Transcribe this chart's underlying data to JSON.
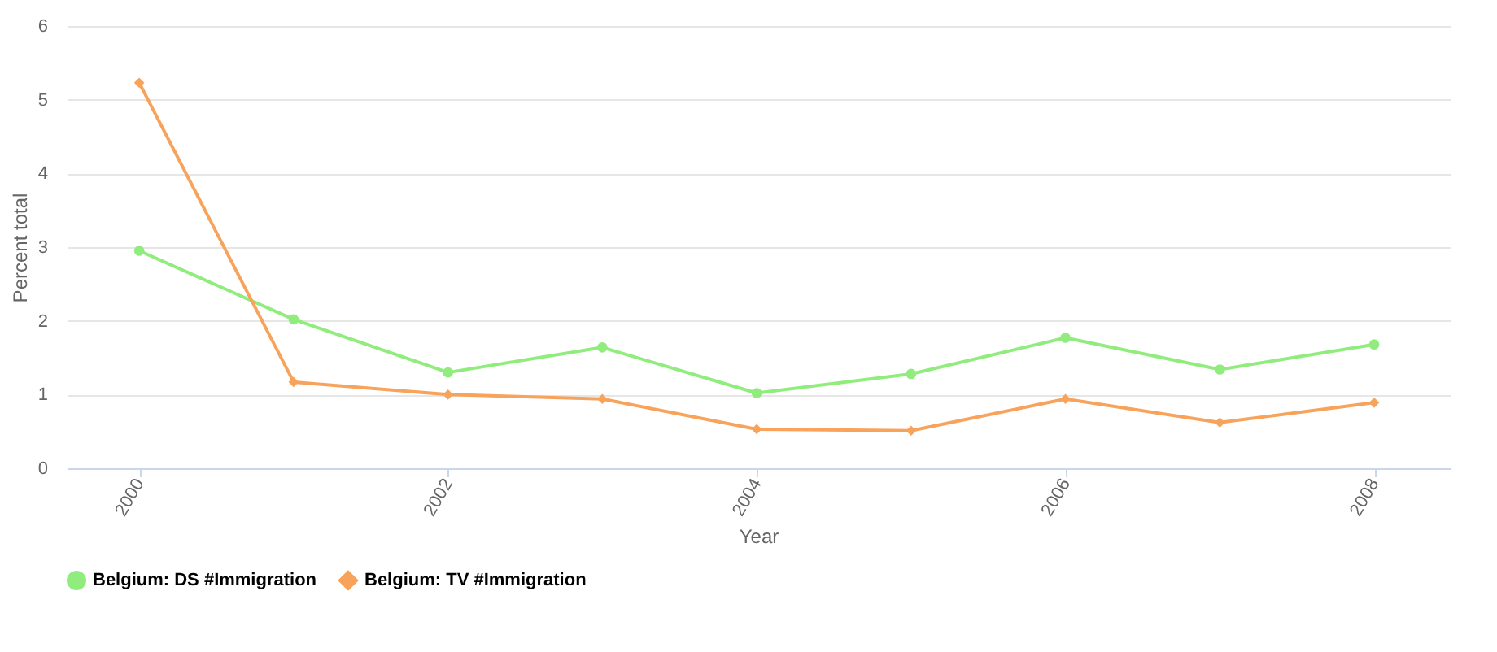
{
  "chart_data": {
    "type": "line",
    "xlabel": "Year",
    "ylabel": "Percent total",
    "x": [
      2000,
      2001,
      2002,
      2003,
      2004,
      2005,
      2006,
      2007,
      2008
    ],
    "series": [
      {
        "name": "Belgium: DS #Immigration",
        "color": "#90ed7d",
        "marker": "circle",
        "values": [
          2.95,
          2.02,
          1.3,
          1.64,
          1.02,
          1.28,
          1.77,
          1.34,
          1.68
        ]
      },
      {
        "name": "Belgium: TV #Immigration",
        "color": "#f7a35c",
        "marker": "diamond",
        "values": [
          5.23,
          1.17,
          1.0,
          0.94,
          0.53,
          0.51,
          0.94,
          0.62,
          0.89
        ]
      }
    ],
    "xlim": [
      1999.53,
      2008.49
    ],
    "xticks": [
      2000,
      2002,
      2004,
      2006,
      2008
    ],
    "ylim": [
      0,
      6
    ],
    "yticks": [
      0,
      1,
      2,
      3,
      4,
      5,
      6
    ],
    "grid": "y",
    "legend": "bottom",
    "line_style": "solid"
  }
}
